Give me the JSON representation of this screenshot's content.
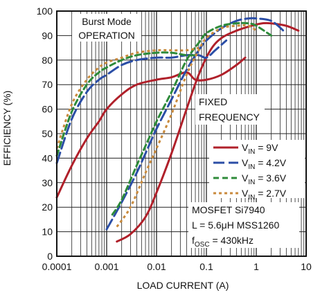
{
  "chart_data": {
    "type": "line",
    "xlabel": "LOAD CURRENT (A)",
    "ylabel": "EFFICIENCY (%)",
    "xscale": "log",
    "xlim": [
      0.0001,
      10
    ],
    "ylim": [
      0,
      100
    ],
    "grid": true,
    "legend_position": "right-middle",
    "x_tick_labels": [
      "0.0001",
      "0.001",
      "0.01",
      "0.1",
      "1",
      "10"
    ],
    "y_tick_labels": [
      "0",
      "10",
      "20",
      "30",
      "40",
      "50",
      "60",
      "70",
      "80",
      "90",
      "100"
    ],
    "annotations": {
      "burst_line1": "Burst Mode",
      "burst_line2": "OPERATION",
      "fixed_line1": "FIXED",
      "fixed_line2": "FREQUENCY",
      "mosfet": "MOSFET Si7940",
      "inductor": "L = 5.6μH MSS1260",
      "fosc_f": "f",
      "fosc_sub": "OSC",
      "fosc_val": " = 430kHz"
    },
    "series": [
      {
        "name": "VIN = 9V",
        "legend_prefix": "V",
        "legend_sub": "IN",
        "legend_val": " = 9V",
        "color": "#b0202a",
        "dash": "solid",
        "segments": [
          {
            "x": [
              0.0001,
              0.0002,
              0.0004,
              0.0007,
              0.001,
              0.002,
              0.004,
              0.01,
              0.02,
              0.04,
              0.06,
              0.1,
              0.2,
              0.4,
              0.6
            ],
            "y": [
              24,
              37,
              48,
              55,
              60,
              66,
              70,
              72,
              73,
              75,
              72,
              72,
              74,
              78,
              81
            ]
          },
          {
            "x": [
              0.0016,
              0.003,
              0.006,
              0.01,
              0.02,
              0.04,
              0.07,
              0.12,
              0.2,
              0.4,
              0.8,
              1.3,
              2,
              4,
              7
            ],
            "y": [
              6,
              9,
              16,
              26,
              42,
              60,
              74,
              84,
              89,
              92,
              94,
              95,
              95,
              94,
              92
            ]
          }
        ]
      },
      {
        "name": "VIN = 4.2V",
        "legend_prefix": "V",
        "legend_sub": "IN",
        "legend_val": " = 4.2V",
        "color": "#2b4ea6",
        "dash": "long",
        "segments": [
          {
            "x": [
              0.0001,
              0.0002,
              0.0004,
              0.0007,
              0.001,
              0.002,
              0.004,
              0.01,
              0.02,
              0.04,
              0.07,
              0.1,
              0.15,
              0.25
            ],
            "y": [
              38,
              56,
              67,
              72,
              74,
              78,
              80,
              81,
              81,
              82,
              82,
              81,
              84,
              88
            ]
          },
          {
            "x": [
              0.001,
              0.002,
              0.004,
              0.007,
              0.01,
              0.02,
              0.04,
              0.07,
              0.1,
              0.2,
              0.4,
              0.7,
              1,
              2,
              3.5
            ],
            "y": [
              11,
              22,
              34,
              45,
              52,
              64,
              76,
              84,
              88,
              93,
              96,
              97,
              97,
              96,
              92
            ]
          }
        ]
      },
      {
        "name": "VIN = 3.6V",
        "legend_prefix": "V",
        "legend_sub": "IN",
        "legend_val": " = 3.6V",
        "color": "#2e8b3a",
        "dash": "medium",
        "segments": [
          {
            "x": [
              0.0001,
              0.0002,
              0.0004,
              0.0007,
              0.001,
              0.002,
              0.004,
              0.01,
              0.02,
              0.04,
              0.06
            ],
            "y": [
              41,
              59,
              70,
              75,
              77,
              80,
              82,
              83,
              83,
              82,
              82
            ]
          },
          {
            "x": [
              0.0013,
              0.002,
              0.004,
              0.007,
              0.01,
              0.02,
              0.04,
              0.07,
              0.1,
              0.2,
              0.4,
              0.7,
              1,
              2
            ],
            "y": [
              17,
              23,
              37,
              48,
              55,
              67,
              80,
              87,
              91,
              94,
              95,
              95,
              94,
              90
            ]
          }
        ]
      },
      {
        "name": "VIN = 2.7V",
        "legend_prefix": "V",
        "legend_sub": "IN",
        "legend_val": " = 2.7V",
        "color": "#c98a3c",
        "dash": "dotted",
        "segments": [
          {
            "x": [
              0.0001,
              0.0002,
              0.0004,
              0.0007,
              0.001,
              0.002,
              0.004,
              0.01,
              0.02,
              0.04,
              0.07
            ],
            "y": [
              44,
              62,
              72,
              77,
              79,
              81,
              83,
              84,
              84,
              84,
              85
            ]
          },
          {
            "x": [
              0.0016,
              0.003,
              0.006,
              0.01,
              0.02,
              0.04,
              0.07,
              0.1,
              0.2,
              0.4,
              0.7,
              1
            ],
            "y": [
              12,
              20,
              34,
              44,
              58,
              74,
              84,
              89,
              93,
              94,
              94,
              92
            ]
          }
        ]
      }
    ]
  }
}
